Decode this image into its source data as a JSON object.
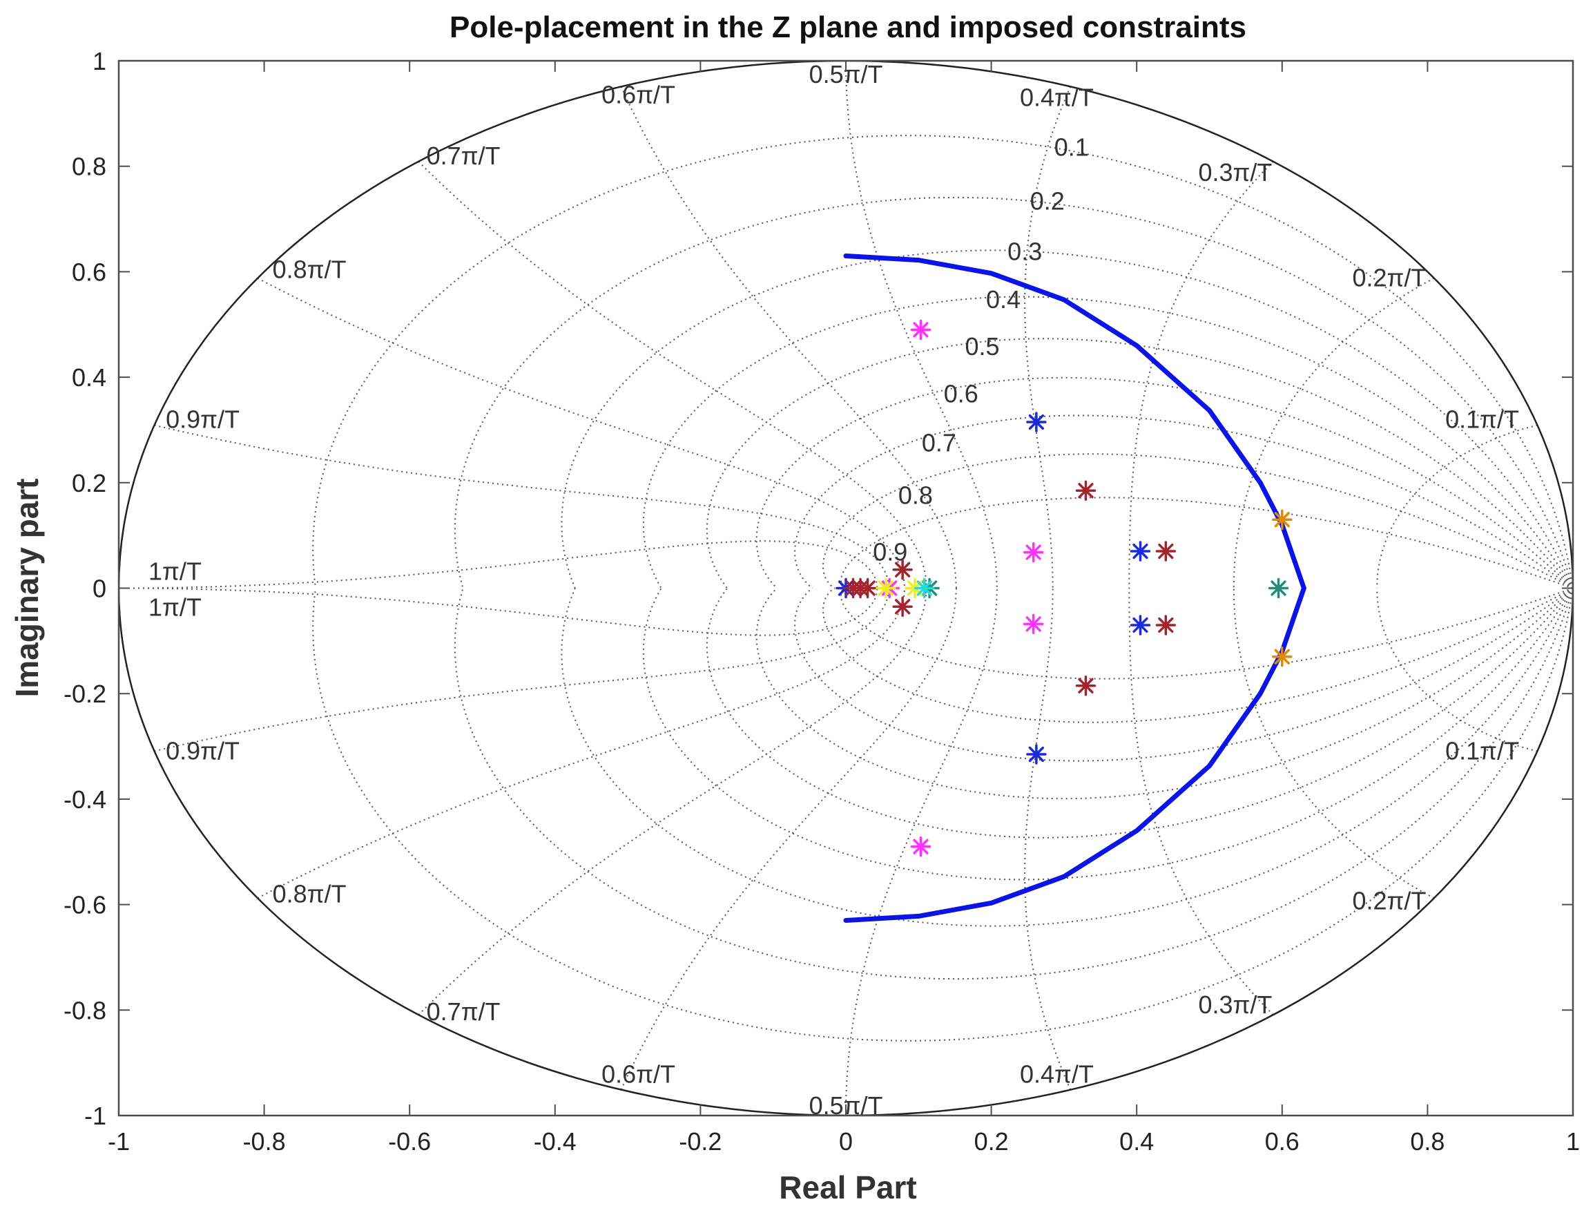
{
  "chart_data": {
    "type": "scatter",
    "title": "Pole-placement in the Z plane and imposed constraints",
    "xlabel": "Real Part",
    "ylabel": "Imaginary part",
    "xlim": [
      -1,
      1
    ],
    "ylim": [
      -1,
      1
    ],
    "xticks": [
      -1,
      -0.8,
      -0.6,
      -0.4,
      -0.2,
      0,
      0.2,
      0.4,
      0.6,
      0.8,
      1
    ],
    "xtick_labels": [
      "-1",
      "-0.8",
      "-0.6",
      "-0.4",
      "-0.2",
      "0",
      "0.2",
      "0.4",
      "0.6",
      "0.8",
      "1"
    ],
    "yticks": [
      1,
      0.8,
      0.6,
      0.4,
      0.2,
      0,
      -0.2,
      -0.4,
      -0.6,
      -0.8,
      -1
    ],
    "ytick_labels": [
      "1",
      "0.8",
      "0.6",
      "0.4",
      "0.2",
      "0",
      "-0.2",
      "-0.4",
      "-0.6",
      "-0.8",
      "-1"
    ],
    "zgrid": {
      "damping_values": [
        0.1,
        0.2,
        0.3,
        0.4,
        0.5,
        0.6,
        0.7,
        0.8,
        0.9
      ],
      "damping_labels": [
        "0.1",
        "0.2",
        "0.3",
        "0.4",
        "0.5",
        "0.6",
        "0.7",
        "0.8",
        "0.9"
      ],
      "natural_freq_values": [
        0.1,
        0.2,
        0.3,
        0.4,
        0.5,
        0.6,
        0.7,
        0.8,
        0.9,
        1.0
      ],
      "natural_freq_labels": [
        "0.1π/T",
        "0.2π/T",
        "0.3π/T",
        "0.4π/T",
        "0.5π/T",
        "0.6π/T",
        "0.7π/T",
        "0.8π/T",
        "0.9π/T",
        "1π/T"
      ]
    },
    "constraint_curve": {
      "name": "imposed constraint",
      "color": "#0a14e6",
      "points": [
        [
          0,
          0.63
        ],
        [
          0.1,
          0.622
        ],
        [
          0.2,
          0.597
        ],
        [
          0.3,
          0.547
        ],
        [
          0.4,
          0.46
        ],
        [
          0.5,
          0.337
        ],
        [
          0.57,
          0.2
        ],
        [
          0.6,
          0.12
        ],
        [
          0.63,
          0
        ],
        [
          0.6,
          -0.12
        ],
        [
          0.57,
          -0.2
        ],
        [
          0.5,
          -0.337
        ],
        [
          0.4,
          -0.46
        ],
        [
          0.3,
          -0.547
        ],
        [
          0.2,
          -0.597
        ],
        [
          0.1,
          -0.622
        ],
        [
          0,
          -0.63
        ]
      ]
    },
    "series": [
      {
        "name": "magenta poles",
        "color": "#ff33ff",
        "points": [
          [
            0.103,
            0.49
          ],
          [
            0.103,
            -0.49
          ],
          [
            0.258,
            0.068
          ],
          [
            0.258,
            -0.068
          ],
          [
            0.06,
            0
          ]
        ]
      },
      {
        "name": "blue poles",
        "color": "#1a2adc",
        "points": [
          [
            0.262,
            0.315
          ],
          [
            0.262,
            -0.315
          ],
          [
            0.405,
            0.07
          ],
          [
            0.405,
            -0.07
          ],
          [
            0,
            0
          ]
        ]
      },
      {
        "name": "dark red poles",
        "color": "#a3232e",
        "points": [
          [
            0.33,
            0.185
          ],
          [
            0.33,
            -0.185
          ],
          [
            0.44,
            0.07
          ],
          [
            0.44,
            -0.07
          ],
          [
            0.078,
            0.035
          ],
          [
            0.078,
            -0.035
          ],
          [
            0.01,
            0
          ],
          [
            0.02,
            0
          ],
          [
            0.03,
            0
          ]
        ]
      },
      {
        "name": "orange poles",
        "color": "#e08a00",
        "points": [
          [
            0.6,
            0.13
          ],
          [
            0.6,
            -0.13
          ]
        ]
      },
      {
        "name": "teal poles",
        "color": "#2a8a7a",
        "points": [
          [
            0.595,
            0
          ],
          [
            0.115,
            0
          ]
        ]
      },
      {
        "name": "yellow poles",
        "color": "#eeee22",
        "points": [
          [
            0.055,
            0
          ],
          [
            0.095,
            0
          ]
        ]
      },
      {
        "name": "cyan poles",
        "color": "#22dddd",
        "points": [
          [
            0.108,
            0
          ]
        ]
      }
    ]
  }
}
